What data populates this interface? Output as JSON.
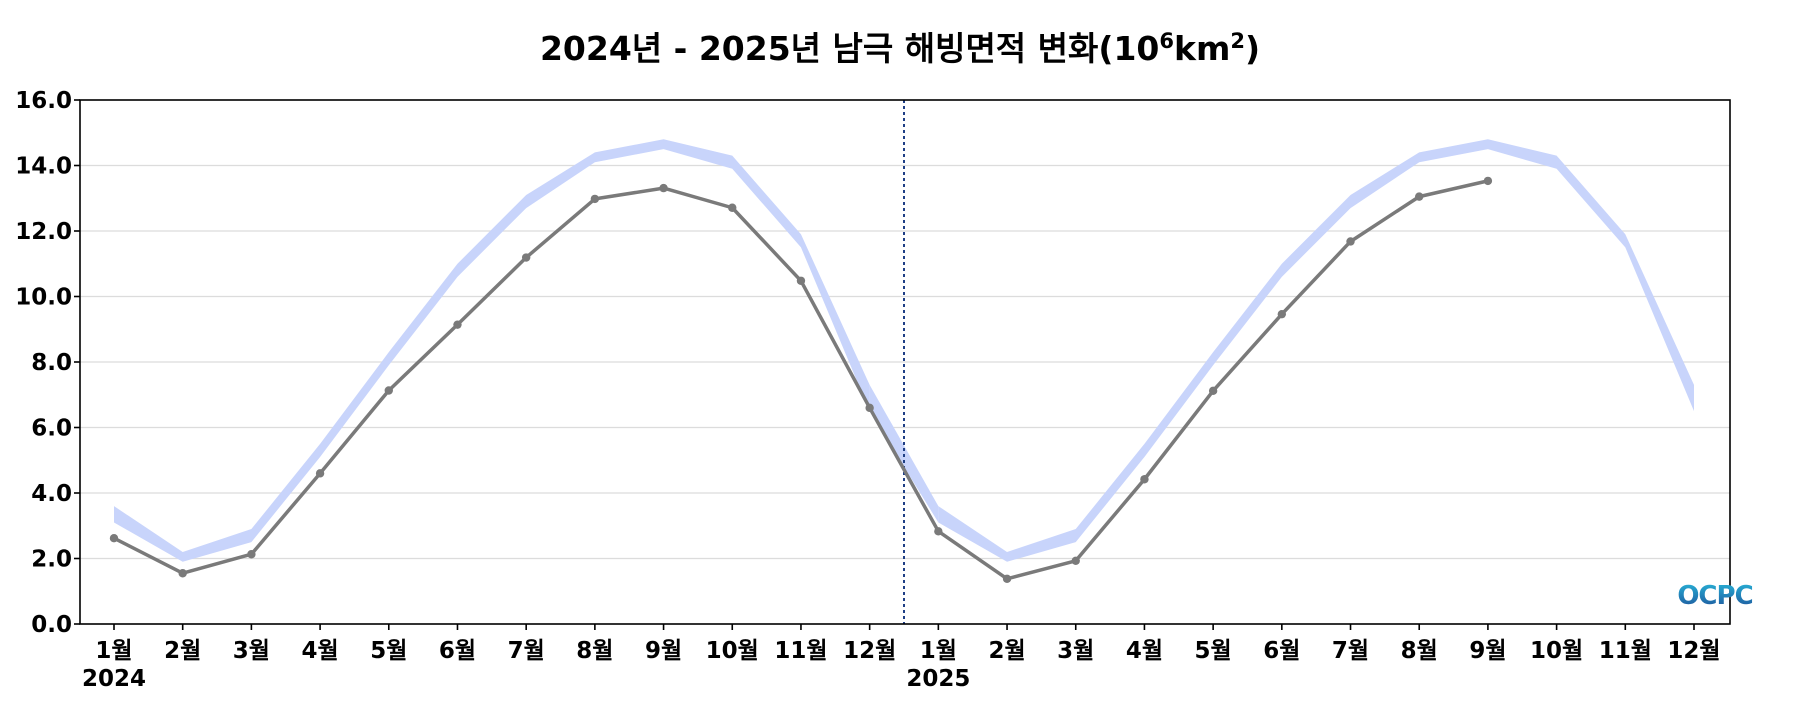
{
  "chart_data": {
    "type": "line",
    "title_parts": [
      "2024년 - 2025년 남극 해빙면적 변화(10",
      "6",
      "km",
      "2",
      ")"
    ],
    "x_tick_labels": [
      "1월",
      "2월",
      "3월",
      "4월",
      "5월",
      "6월",
      "7월",
      "8월",
      "9월",
      "10월",
      "11월",
      "12월",
      "1월",
      "2월",
      "3월",
      "4월",
      "5월",
      "6월",
      "7월",
      "8월",
      "9월",
      "10월",
      "11월",
      "12월"
    ],
    "year_labels": [
      "2024",
      "2025"
    ],
    "y_ticks": [
      "0.0",
      "2.0",
      "4.0",
      "6.0",
      "8.0",
      "10.0",
      "12.0",
      "14.0",
      "16.0"
    ],
    "ylim": [
      0,
      16
    ],
    "grid": true,
    "year_divider_between": [
      12,
      13
    ],
    "series": [
      {
        "kind": "band",
        "lower": [
          3.1,
          1.9,
          2.5,
          5.1,
          7.9,
          10.6,
          12.7,
          14.1,
          14.5,
          13.9,
          11.5,
          6.5,
          3.1,
          1.9,
          2.5,
          5.1,
          7.9,
          10.6,
          12.7,
          14.1,
          14.5,
          13.9,
          11.5,
          6.5
        ],
        "upper": [
          3.6,
          2.2,
          2.9,
          5.5,
          8.3,
          11.0,
          13.1,
          14.4,
          14.8,
          14.3,
          11.9,
          7.3,
          3.6,
          2.2,
          2.9,
          5.5,
          8.3,
          11.0,
          13.1,
          14.4,
          14.8,
          14.3,
          11.9,
          7.3
        ],
        "color": "#c8d4fb"
      },
      {
        "kind": "line",
        "values": [
          2.62,
          1.55,
          2.13,
          4.6,
          7.13,
          9.14,
          11.19,
          12.98,
          13.31,
          12.71,
          10.48,
          6.6,
          2.83,
          1.38,
          1.93,
          4.42,
          7.12,
          9.46,
          11.68,
          13.05,
          13.53
        ],
        "color": "#7a7a7a"
      }
    ]
  },
  "watermark": {
    "text": "OCPC",
    "color_top": "#28b4d8",
    "color_bottom": "#1d4f98"
  }
}
